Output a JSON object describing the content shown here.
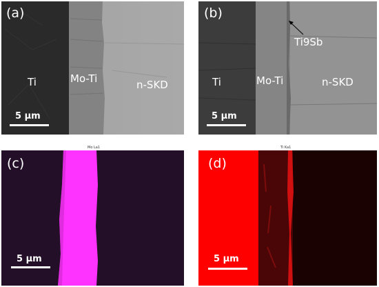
{
  "panels": {
    "a": {
      "label": "(a)",
      "regions": [
        "Ti",
        "Mo-Ti",
        "n-SKD"
      ],
      "scale_bar": "5 μm"
    },
    "b": {
      "label": "(b)",
      "regions": [
        "Ti",
        "Mo-Ti",
        "n-SKD"
      ],
      "annotation": "Ti9Sb",
      "scale_bar": "5 μm"
    },
    "c": {
      "label": "(c)",
      "map_title": "Mo La1",
      "scale_bar": "5 μm",
      "map_color": "#ff33ff"
    },
    "d": {
      "label": "(d)",
      "map_title": "Ti Ka1",
      "scale_bar": "5 μm",
      "map_color": "#ff0000"
    }
  }
}
